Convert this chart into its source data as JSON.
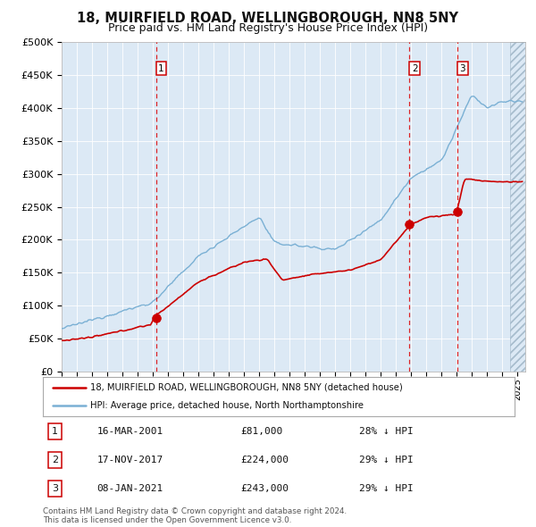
{
  "title": "18, MUIRFIELD ROAD, WELLINGBOROUGH, NN8 5NY",
  "subtitle": "Price paid vs. HM Land Registry's House Price Index (HPI)",
  "title_fontsize": 10.5,
  "subtitle_fontsize": 9,
  "background_color": "#dce9f5",
  "sale_color": "#cc0000",
  "hpi_color": "#7ab0d4",
  "ylim": [
    0,
    500000
  ],
  "yticks": [
    0,
    50000,
    100000,
    150000,
    200000,
    250000,
    300000,
    350000,
    400000,
    450000,
    500000
  ],
  "ytick_labels": [
    "£0",
    "£50K",
    "£100K",
    "£150K",
    "£200K",
    "£250K",
    "£300K",
    "£350K",
    "£400K",
    "£450K",
    "£500K"
  ],
  "xlim_start": 1995.0,
  "xlim_end": 2025.5,
  "sale_dates": [
    2001.21,
    2017.88,
    2021.03
  ],
  "sale_prices": [
    81000,
    224000,
    243000
  ],
  "sale_labels": [
    "1",
    "2",
    "3"
  ],
  "legend_sale": "18, MUIRFIELD ROAD, WELLINGBOROUGH, NN8 5NY (detached house)",
  "legend_hpi": "HPI: Average price, detached house, North Northamptonshire",
  "table_rows": [
    [
      "1",
      "16-MAR-2001",
      "£81,000",
      "28% ↓ HPI"
    ],
    [
      "2",
      "17-NOV-2017",
      "£224,000",
      "29% ↓ HPI"
    ],
    [
      "3",
      "08-JAN-2021",
      "£243,000",
      "29% ↓ HPI"
    ]
  ],
  "footnote": "Contains HM Land Registry data © Crown copyright and database right 2024.\nThis data is licensed under the Open Government Licence v3.0."
}
